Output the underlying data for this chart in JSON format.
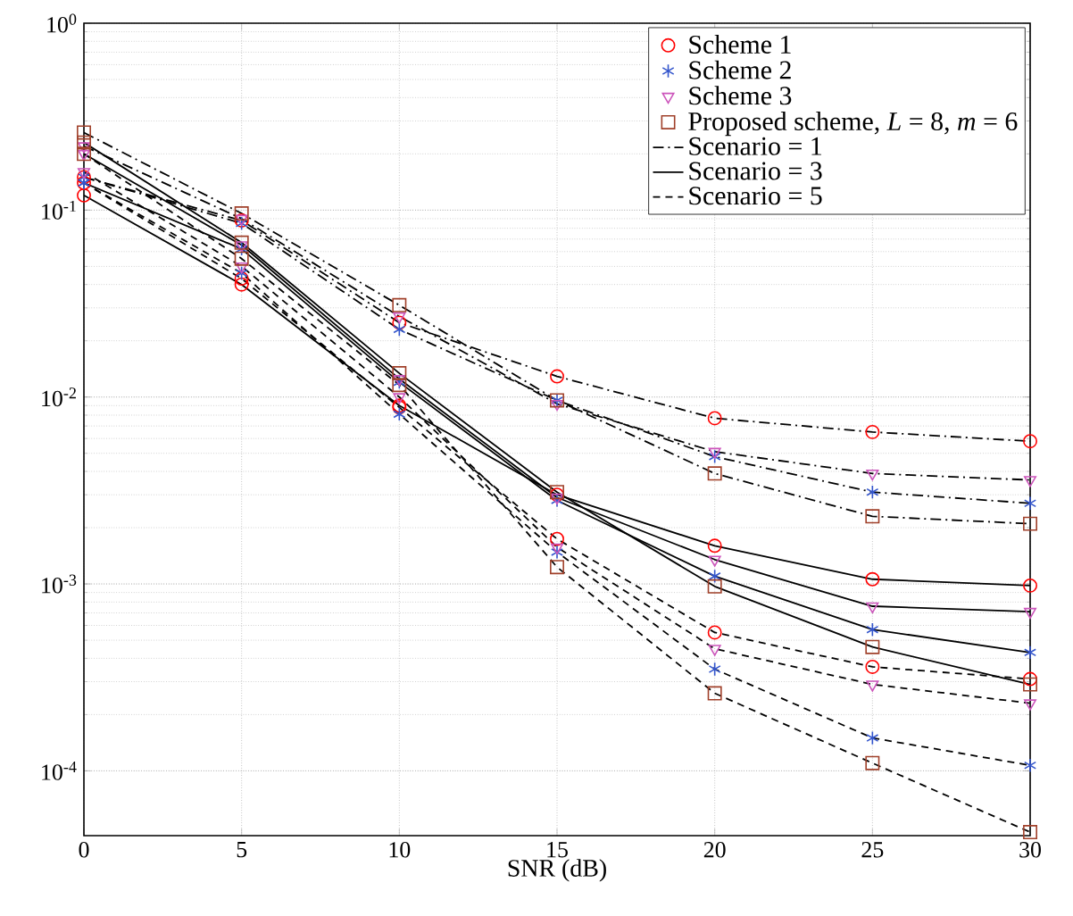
{
  "chart_data": {
    "type": "scatter",
    "xlabel": "SNR (dB)",
    "xlim": [
      0,
      30
    ],
    "xticks": [
      0,
      5,
      10,
      15,
      20,
      25,
      30
    ],
    "ylim": [
      4.5e-05,
      1
    ],
    "yticks": [
      {
        "value": 0.0001,
        "label": "10$^{-4}$"
      },
      {
        "value": 0.001,
        "label": "10$^{-3}$"
      },
      {
        "value": 0.01,
        "label": "10$^{-2}$"
      },
      {
        "value": 0.1,
        "label": "10$^{-1}$"
      },
      {
        "value": 1,
        "label": "10$^{0}$"
      }
    ],
    "log": "y",
    "grid": true,
    "legend": "top right",
    "series": [
      {
        "name": "Scheme 1",
        "marker": "circle",
        "color": "#ff0000",
        "x": [
          0,
          5,
          10,
          15,
          20,
          25,
          30,
          0,
          5,
          10,
          15,
          20,
          25,
          30,
          0,
          5,
          10,
          15,
          20,
          25,
          30
        ],
        "values": [
          0.15,
          0.088,
          0.025,
          0.0129,
          0.0077,
          0.0065,
          0.0058,
          0.12,
          0.04,
          0.009,
          0.003,
          0.0016,
          0.00106,
          0.00098,
          0.14,
          0.043,
          0.0088,
          0.00174,
          0.00055,
          0.00036,
          0.00031
        ]
      },
      {
        "name": "Scheme 2",
        "marker": "cross",
        "color": "#3355cc",
        "x": [
          0,
          5,
          10,
          15,
          20,
          25,
          30,
          0,
          5,
          10,
          15,
          20,
          25,
          30,
          0,
          5,
          10,
          15,
          20,
          25,
          30
        ],
        "values": [
          0.15,
          0.085,
          0.023,
          0.0096,
          0.0048,
          0.0031,
          0.0027,
          0.14,
          0.062,
          0.012,
          0.0028,
          0.0011,
          0.00057,
          0.00043,
          0.14,
          0.046,
          0.0081,
          0.00148,
          0.00035,
          0.00015,
          0.000107
        ]
      },
      {
        "name": "Scheme 3",
        "marker": "triangle",
        "color": "#cc55bb",
        "x": [
          0,
          5,
          10,
          15,
          20,
          25,
          30,
          0,
          5,
          10,
          15,
          20,
          25,
          30,
          0,
          5,
          10,
          15,
          20,
          25,
          30
        ],
        "values": [
          0.22,
          0.09,
          0.027,
          0.0092,
          0.0051,
          0.0039,
          0.0036,
          0.2,
          0.065,
          0.0125,
          0.0029,
          0.00135,
          0.00076,
          0.00071,
          0.16,
          0.05,
          0.01,
          0.00157,
          0.00045,
          0.00029,
          0.00023
        ]
      },
      {
        "name": "Proposed scheme, *L* = 8, *m* = 6",
        "marker": "square",
        "color": "#a0402a",
        "x": [
          0,
          5,
          10,
          15,
          20,
          25,
          30,
          0,
          5,
          10,
          15,
          20,
          25,
          30,
          0,
          5,
          10,
          15,
          20,
          25,
          30
        ],
        "values": [
          0.26,
          0.096,
          0.031,
          0.0096,
          0.0039,
          0.0023,
          0.0021,
          0.23,
          0.067,
          0.0134,
          0.0031,
          0.00097,
          0.00046,
          0.00029,
          0.2,
          0.055,
          0.0116,
          0.00123,
          0.00026,
          0.00011,
          4.7e-05
        ]
      },
      {
        "name": "Scenario = 1",
        "type": "line",
        "marker": "none",
        "line_style": "dashdot",
        "color": "#000000",
        "x": [
          0,
          5,
          10,
          15,
          20,
          25,
          30
        ],
        "values": [
          0.15,
          0.088,
          0.025,
          0.0129,
          0.0077,
          0.0065,
          0.0058
        ]
      },
      {
        "type": "line",
        "marker": "none",
        "line_style": "dashdot",
        "color": "#000000",
        "x": [
          0,
          5,
          10,
          15,
          20,
          25,
          30
        ],
        "values": [
          0.15,
          0.085,
          0.023,
          0.0096,
          0.0048,
          0.0031,
          0.0027
        ]
      },
      {
        "type": "line",
        "marker": "none",
        "line_style": "dashdot",
        "color": "#000000",
        "x": [
          0,
          5,
          10,
          15,
          20,
          25,
          30
        ],
        "values": [
          0.22,
          0.09,
          0.027,
          0.0092,
          0.0051,
          0.0039,
          0.0036
        ]
      },
      {
        "type": "line",
        "marker": "none",
        "line_style": "dashdot",
        "color": "#000000",
        "x": [
          0,
          5,
          10,
          15,
          20,
          25,
          30
        ],
        "values": [
          0.26,
          0.096,
          0.031,
          0.0096,
          0.0039,
          0.0023,
          0.0021
        ]
      },
      {
        "name": "Scenario = 3",
        "type": "line",
        "marker": "none",
        "line_style": "solid",
        "color": "#000000",
        "x": [
          0,
          5,
          10,
          15,
          20,
          25,
          30
        ],
        "values": [
          0.12,
          0.04,
          0.009,
          0.003,
          0.0016,
          0.00106,
          0.00098
        ]
      },
      {
        "type": "line",
        "marker": "none",
        "line_style": "solid",
        "color": "#000000",
        "x": [
          0,
          5,
          10,
          15,
          20,
          25,
          30
        ],
        "values": [
          0.14,
          0.062,
          0.012,
          0.0028,
          0.0011,
          0.00057,
          0.00043
        ]
      },
      {
        "type": "line",
        "marker": "none",
        "line_style": "solid",
        "color": "#000000",
        "x": [
          0,
          5,
          10,
          15,
          20,
          25,
          30
        ],
        "values": [
          0.2,
          0.065,
          0.0125,
          0.0029,
          0.00135,
          0.00076,
          0.00071
        ]
      },
      {
        "type": "line",
        "marker": "none",
        "line_style": "solid",
        "color": "#000000",
        "x": [
          0,
          5,
          10,
          15,
          20,
          25,
          30
        ],
        "values": [
          0.23,
          0.067,
          0.0134,
          0.0031,
          0.00097,
          0.00046,
          0.00029
        ]
      },
      {
        "name": "Scenario = 5",
        "type": "line",
        "marker": "none",
        "line_style": "dashed",
        "color": "#000000",
        "x": [
          0,
          5,
          10,
          15,
          20,
          25,
          30
        ],
        "values": [
          0.14,
          0.043,
          0.0088,
          0.00174,
          0.00055,
          0.00036,
          0.00031
        ]
      },
      {
        "type": "line",
        "marker": "none",
        "line_style": "dashed",
        "color": "#000000",
        "x": [
          0,
          5,
          10,
          15,
          20,
          25,
          30
        ],
        "values": [
          0.14,
          0.046,
          0.0081,
          0.00148,
          0.00035,
          0.00015,
          0.000107
        ]
      },
      {
        "type": "line",
        "marker": "none",
        "line_style": "dashed",
        "color": "#000000",
        "x": [
          0,
          5,
          10,
          15,
          20,
          25,
          30
        ],
        "values": [
          0.16,
          0.05,
          0.01,
          0.00157,
          0.00045,
          0.00029,
          0.00023
        ]
      },
      {
        "type": "line",
        "marker": "none",
        "line_style": "dashed",
        "color": "#000000",
        "x": [
          0,
          5,
          10,
          15,
          20,
          25,
          30
        ],
        "values": [
          0.2,
          0.055,
          0.0116,
          0.00123,
          0.00026,
          0.00011,
          4.7e-05
        ]
      }
    ]
  }
}
